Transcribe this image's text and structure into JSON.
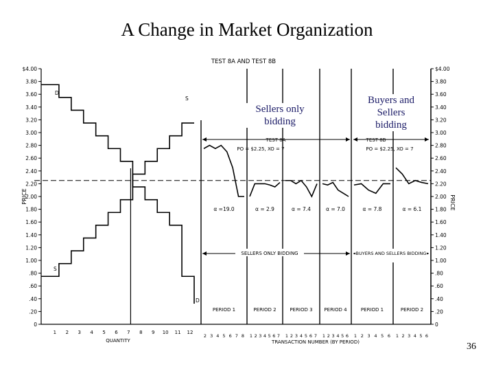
{
  "slide": {
    "title": "A Change in Market Organization",
    "number": "36",
    "annotation_sellers": "Sellers only bidding",
    "annotation_buyers": "Buyers and Sellers bidding"
  },
  "chart_data": [
    {
      "type": "line",
      "title": "TEST 8A AND TEST 8B",
      "ylabel": "PRICE",
      "xlabel": "QUANTITY",
      "ylim": [
        0,
        4.0
      ],
      "y_ticks": [
        "0",
        ".20",
        ".40",
        ".60",
        ".80",
        "1.00",
        "1.20",
        "1.40",
        "1.60",
        "1.80",
        "2.00",
        "2.20",
        "2.40",
        "2.60",
        "2.80",
        "3.00",
        "3.20",
        "3.40",
        "3.60",
        "3.80",
        "$4.00"
      ],
      "x_ticks": [
        "1",
        "2",
        "3",
        "4",
        "5",
        "6",
        "7",
        "8",
        "9",
        "10",
        "11",
        "12"
      ],
      "series": [
        {
          "name": "D",
          "steps": [
            [
              0,
              3.75
            ],
            [
              1,
              3.55
            ],
            [
              2,
              3.35
            ],
            [
              3,
              3.15
            ],
            [
              4,
              2.95
            ],
            [
              5,
              2.75
            ],
            [
              6,
              2.55
            ],
            [
              7,
              2.15
            ],
            [
              8,
              1.95
            ],
            [
              9,
              1.75
            ],
            [
              10,
              1.55
            ],
            [
              11,
              0.75
            ]
          ]
        },
        {
          "name": "S",
          "steps": [
            [
              0,
              0.75
            ],
            [
              1,
              0.95
            ],
            [
              2,
              1.15
            ],
            [
              3,
              1.35
            ],
            [
              4,
              1.55
            ],
            [
              5,
              1.75
            ],
            [
              6,
              1.95
            ],
            [
              7,
              2.35
            ],
            [
              8,
              2.55
            ],
            [
              9,
              2.75
            ],
            [
              10,
              2.95
            ],
            [
              11,
              3.15
            ]
          ]
        }
      ],
      "equilibrium_price": 2.25
    },
    {
      "type": "line",
      "xlabel": "TRANSACTION NUMBER (BY PERIOD)",
      "ylabel": "PRICE",
      "ylim": [
        0,
        4.0
      ],
      "y_ticks": [
        "0",
        ".20",
        ".40",
        ".60",
        ".80",
        "1.00",
        "1.20",
        "1.40",
        "1.60",
        "1.80",
        "2.00",
        "2.20",
        "2.40",
        "2.60",
        "2.80",
        "3.00",
        "3.20",
        "3.40",
        "3.60",
        "3.80",
        "$4.00"
      ],
      "periods": [
        {
          "label": "PERIOD 1",
          "alpha": "α =19.0",
          "x_ticks": [
            "2",
            "3",
            "4",
            "5",
            "6",
            "7",
            "8"
          ],
          "prices": [
            2.75,
            2.8,
            2.75,
            2.8,
            2.7,
            2.45,
            2.0,
            2.0
          ]
        },
        {
          "label": "PERIOD 2",
          "alpha": "α = 2.9",
          "x_ticks": [
            "1",
            "2",
            "3",
            "4",
            "5",
            "6",
            "7"
          ],
          "prices": [
            2.0,
            2.2,
            2.2,
            2.2,
            2.18,
            2.15,
            2.22
          ]
        },
        {
          "label": "PERIOD 3",
          "alpha": "α = 7.4",
          "x_ticks": [
            "1",
            "2",
            "3",
            "4",
            "5",
            "6",
            "7"
          ],
          "prices": [
            2.25,
            2.25,
            2.2,
            2.25,
            2.15,
            2.0,
            2.2
          ]
        },
        {
          "label": "PERIOD 4",
          "alpha": "α = 7.0",
          "x_ticks": [
            "1",
            "2",
            "3",
            "4",
            "5",
            "6"
          ],
          "prices": [
            2.2,
            2.18,
            2.22,
            2.1,
            2.05,
            2.0
          ]
        },
        {
          "label": "PERIOD 1",
          "alpha": "α = 7.8",
          "x_ticks": [
            "1",
            "2",
            "3",
            "4",
            "5",
            "6"
          ],
          "prices": [
            2.18,
            2.2,
            2.1,
            2.05,
            2.2,
            2.2
          ]
        },
        {
          "label": "PERIOD 2",
          "alpha": "α = 6.1",
          "x_ticks": [
            "1",
            "2",
            "3",
            "4",
            "5",
            "6"
          ],
          "prices": [
            2.45,
            2.35,
            2.2,
            2.25,
            2.22,
            2.2
          ]
        }
      ],
      "test_labels": [
        {
          "label": "TEST 8A",
          "equilibrium": "PO = $2.25, XO = 7"
        },
        {
          "label": "TEST 8B",
          "equilibrium": "PO = $2.25, XO = 7"
        }
      ],
      "regime_labels": [
        "SELLERS ONLY BIDDING",
        "BUYERS AND SELLERS BIDDING"
      ]
    }
  ]
}
